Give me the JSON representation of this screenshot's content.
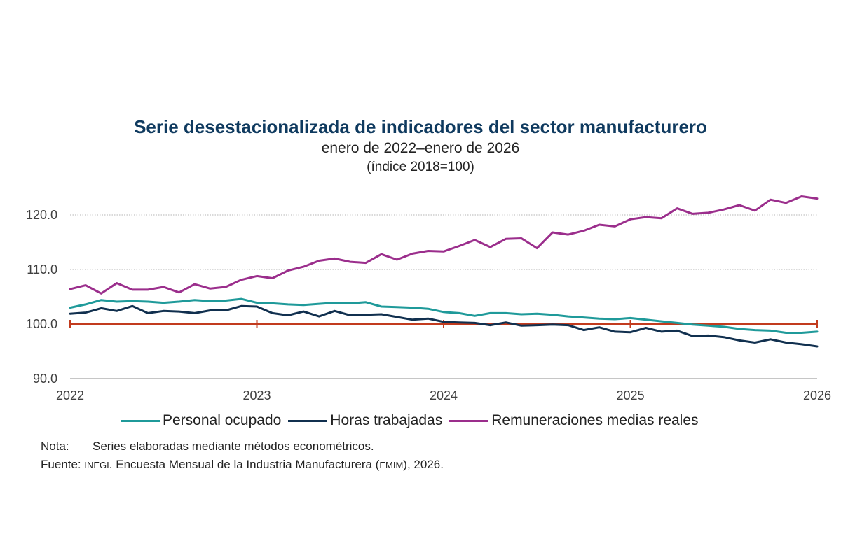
{
  "chart_data": {
    "type": "line",
    "title": "Serie desestacionalizada de indicadores del sector manufacturero",
    "subtitle": "enero de 2022–enero de 2026",
    "unit_label": "(índice 2018=100)",
    "ylim": [
      90,
      120
    ],
    "yticks": [
      "90.0",
      "100.0",
      "110.0",
      "120.0"
    ],
    "xticks": [
      "2022",
      "2023",
      "2024",
      "2025",
      "2026"
    ],
    "reference_line": 100,
    "reference_color": "#c23b1e",
    "series": [
      {
        "name": "Personal ocupado",
        "color": "#1f9a9a",
        "values": [
          103.0,
          103.6,
          104.4,
          104.1,
          104.2,
          104.1,
          103.9,
          104.1,
          104.4,
          104.2,
          104.3,
          104.6,
          103.9,
          103.8,
          103.6,
          103.5,
          103.7,
          103.9,
          103.8,
          104.0,
          103.2,
          103.1,
          103.0,
          102.8,
          102.2,
          102.0,
          101.5,
          102.0,
          102.0,
          101.8,
          101.9,
          101.7,
          101.4,
          101.2,
          101.0,
          100.9,
          101.1,
          100.8,
          100.5,
          100.2,
          99.9,
          99.7,
          99.5,
          99.1,
          98.9,
          98.8,
          98.4,
          98.4,
          98.6
        ]
      },
      {
        "name": "Horas trabajadas",
        "color": "#11304f",
        "values": [
          101.9,
          102.1,
          102.9,
          102.4,
          103.3,
          102.0,
          102.4,
          102.3,
          102.0,
          102.5,
          102.5,
          103.3,
          103.2,
          102.0,
          101.6,
          102.3,
          101.4,
          102.4,
          101.6,
          101.7,
          101.8,
          101.3,
          100.8,
          101.0,
          100.4,
          100.3,
          100.2,
          99.8,
          100.3,
          99.7,
          99.8,
          99.9,
          99.8,
          98.9,
          99.4,
          98.6,
          98.5,
          99.3,
          98.6,
          98.8,
          97.8,
          97.9,
          97.6,
          97.0,
          96.6,
          97.2,
          96.6,
          96.3,
          95.9
        ]
      },
      {
        "name": "Remuneraciones medias reales",
        "color": "#9b2e8c",
        "values": [
          106.4,
          107.1,
          105.6,
          107.5,
          106.3,
          106.3,
          106.8,
          105.8,
          107.3,
          106.5,
          106.8,
          108.1,
          108.8,
          108.4,
          109.8,
          110.5,
          111.6,
          112.0,
          111.4,
          111.2,
          112.8,
          111.8,
          112.9,
          113.4,
          113.3,
          114.3,
          115.4,
          114.1,
          115.6,
          115.7,
          113.9,
          116.8,
          116.4,
          117.1,
          118.2,
          117.9,
          119.2,
          119.6,
          119.4,
          121.2,
          120.2,
          120.4,
          121.0,
          121.8,
          120.8,
          122.8,
          122.2,
          123.4,
          123.0
        ]
      }
    ]
  },
  "notes": {
    "nota_label": "Nota:",
    "nota_text": "Series elaboradas mediante métodos econométricos.",
    "fuente_label": "Fuente:",
    "fuente_org": "INEGI",
    "fuente_text_1": ". Encuesta Mensual de la Industria Manufacturera (",
    "fuente_abbr": "EMIM",
    "fuente_text_2": "), 2026."
  }
}
